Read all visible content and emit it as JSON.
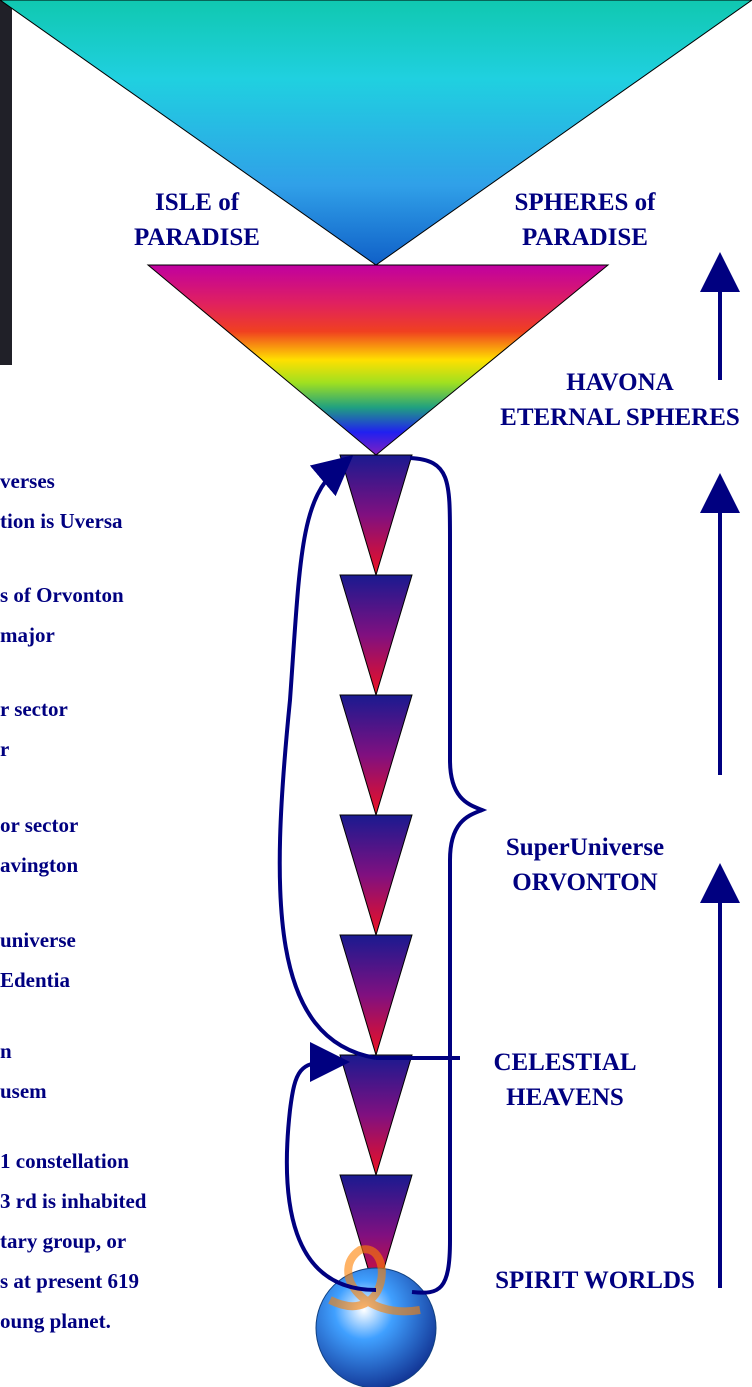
{
  "labels": [
    {
      "lines": [
        "ISLE of",
        "PARADISE"
      ]
    },
    {
      "lines": [
        "SPHERES of",
        "PARADISE"
      ]
    },
    {
      "lines": [
        "HAVONA",
        "ETERNAL SPHERES"
      ]
    },
    {
      "lines": [
        "SuperUniverse",
        "ORVONTON"
      ]
    },
    {
      "lines": [
        "CELESTIAL",
        "HEAVENS"
      ]
    },
    {
      "lines": [
        "SPIRIT WORLDS"
      ]
    }
  ],
  "notes": [
    {
      "lines": [
        "verses",
        "tion is Uversa"
      ]
    },
    {
      "lines": [
        "s of Orvonton",
        "major"
      ]
    },
    {
      "lines": [
        "r sector",
        "r"
      ]
    },
    {
      "lines": [
        "or sector",
        "avington"
      ]
    },
    {
      "lines": [
        "universe",
        " Edentia"
      ]
    },
    {
      "lines": [
        "n",
        "usem"
      ]
    },
    {
      "lines": [
        "1 constellation",
        "3 rd is inhabited",
        "tary group, or",
        "s at present 619",
        "oung planet."
      ]
    }
  ]
}
